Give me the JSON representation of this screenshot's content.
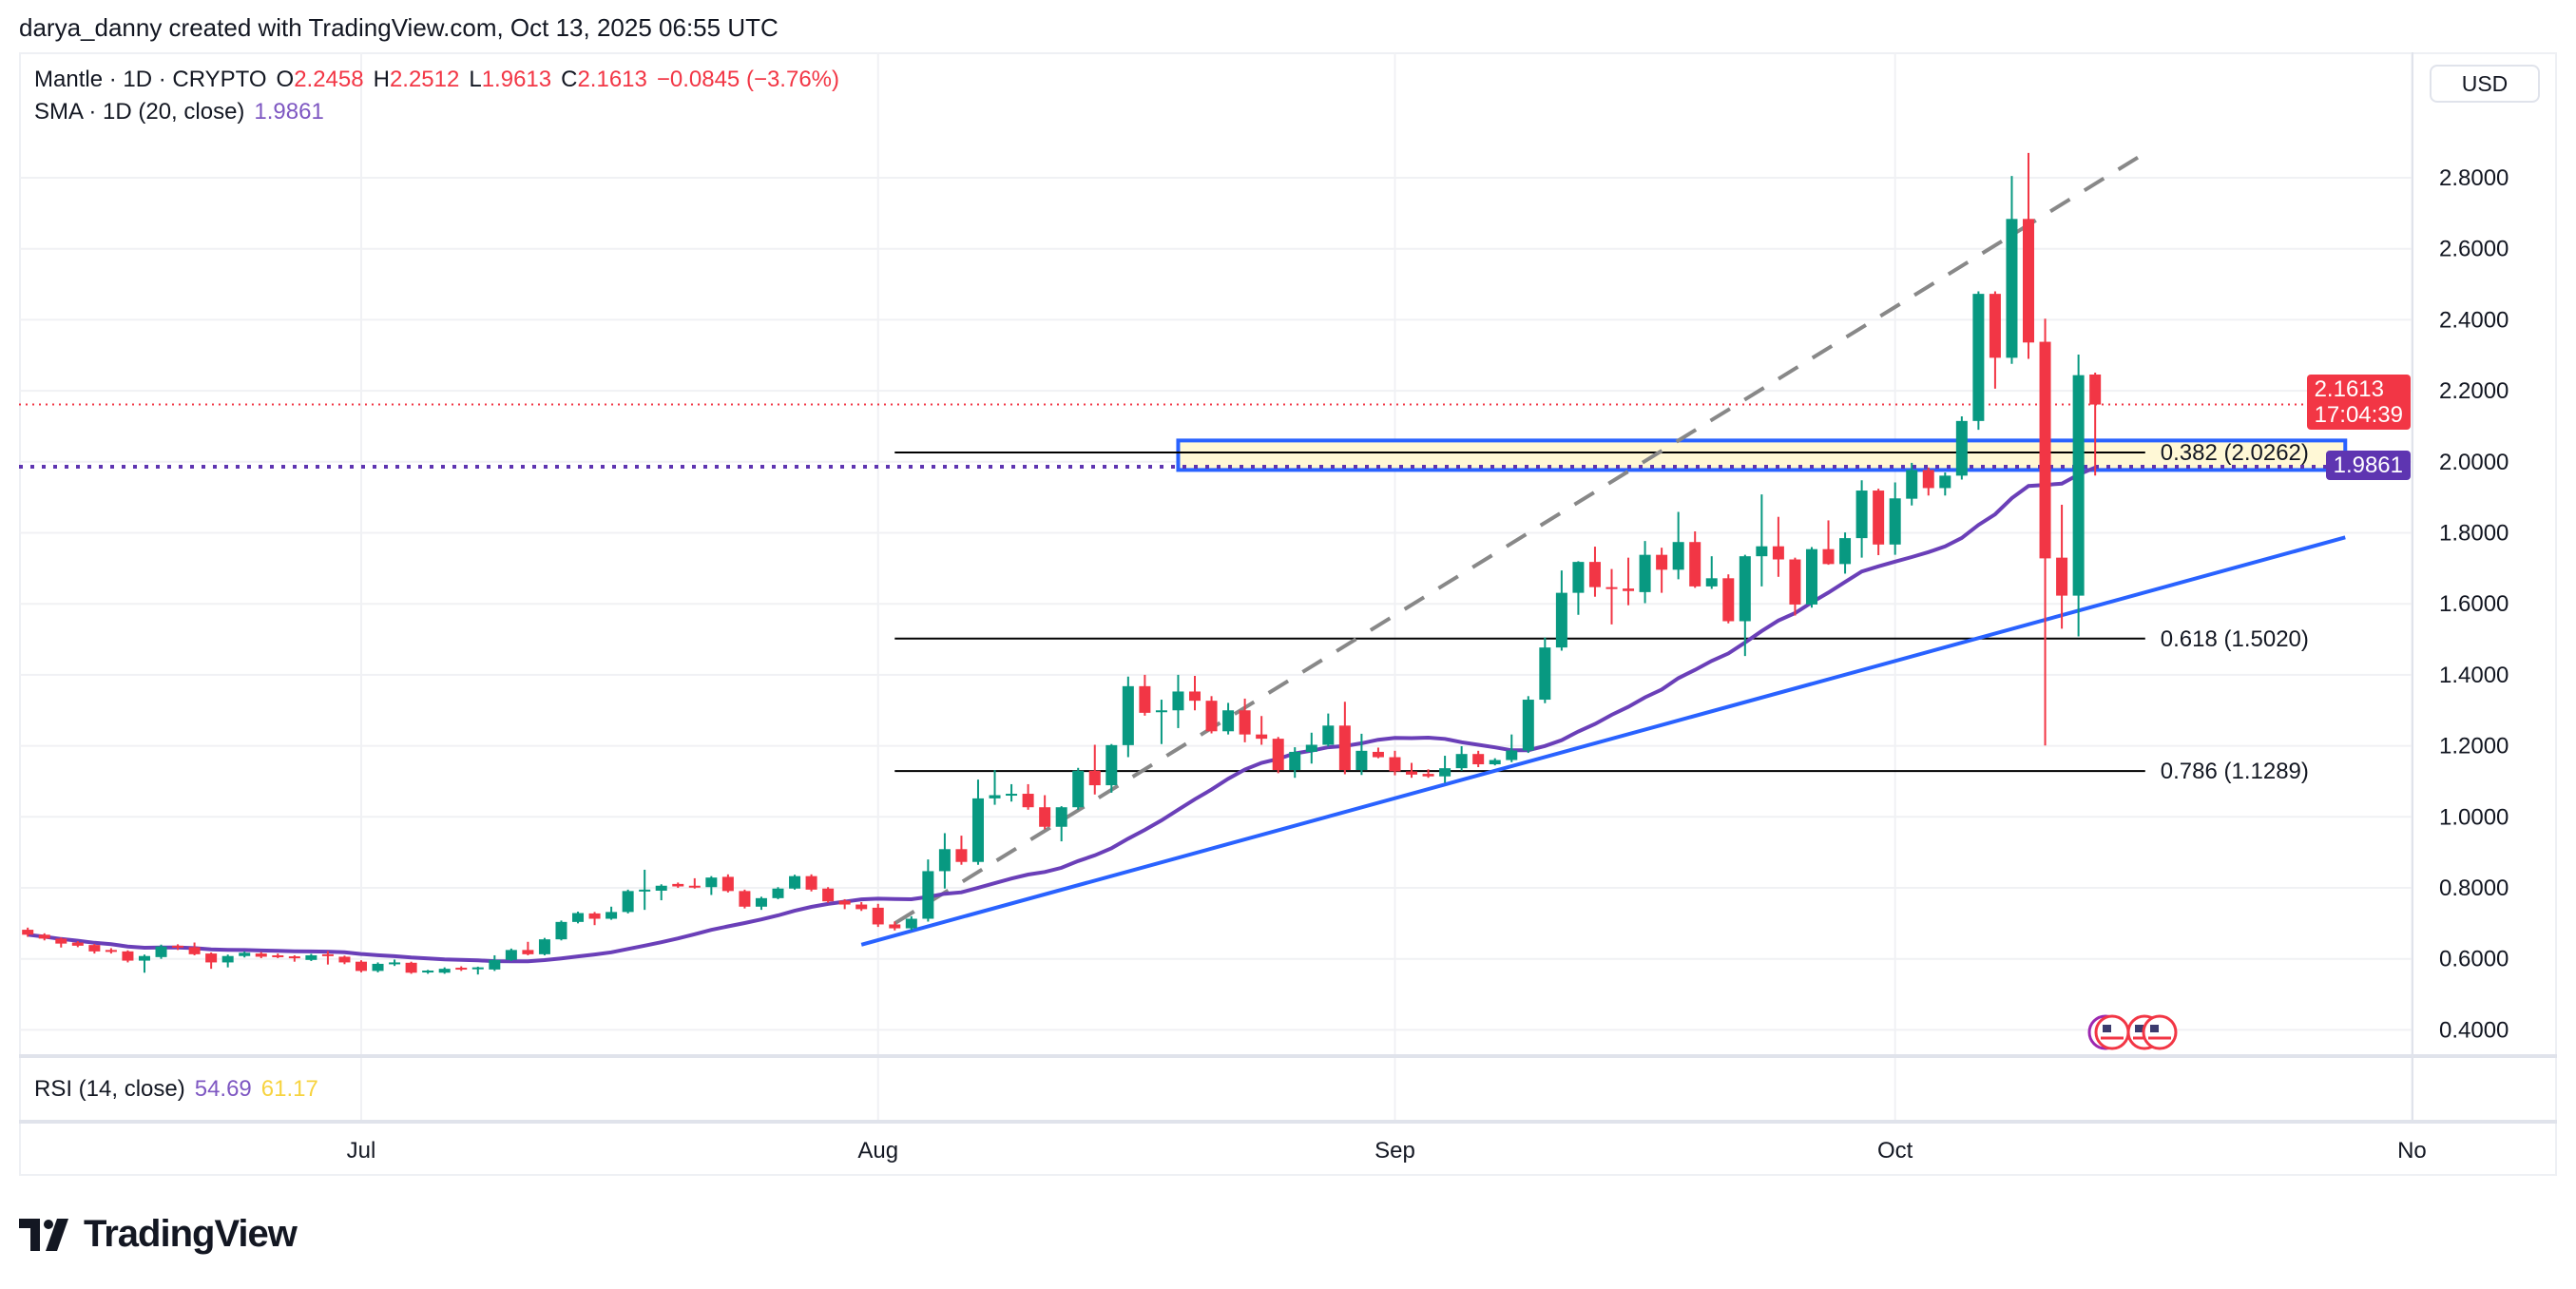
{
  "attribution": "darya_danny created with TradingView.com, Oct 13, 2025 06:55 UTC",
  "legend": {
    "symbol": "Mantle · 1D · CRYPTO",
    "o_label": "O",
    "o": "2.2458",
    "h_label": "H",
    "h": "2.2512",
    "l_label": "L",
    "l": "1.9613",
    "c_label": "C",
    "c": "2.1613",
    "change": "−0.0845 (−3.76%)",
    "sma_label": "SMA · 1D (20, close)",
    "sma_value": "1.9861",
    "rsi_label": "RSI (14, close)",
    "rsi_value": "54.69",
    "rsi_ma_value": "61.17"
  },
  "currency": "USD",
  "last_price_label": "2.1613",
  "countdown": "17:04:39",
  "sma_price_label": "1.9861",
  "brand": "TradingView",
  "colors": {
    "up": "#089981",
    "down": "#F23645",
    "sma": "#6a3fb8",
    "trendline": "#2962FF",
    "fib": "#000000",
    "zone_fill": "#FFF8D6",
    "dashed": "#888888",
    "grid": "#f0f1f4"
  },
  "icons": {
    "events": "us-flag-icon",
    "logo": "tradingview-logo-icon"
  },
  "chart_data": {
    "type": "candlestick",
    "yticks": [
      "0.4000",
      "0.6000",
      "0.8000",
      "1.0000",
      "1.2000",
      "1.4000",
      "1.6000",
      "1.8000",
      "2.0000",
      "2.2000",
      "2.4000",
      "2.6000",
      "2.8000"
    ],
    "ylim": [
      0.4,
      2.8
    ],
    "xticks": [
      {
        "date": "2025-07-01",
        "label": "Jul"
      },
      {
        "date": "2025-08-01",
        "label": "Aug"
      },
      {
        "date": "2025-09-01",
        "label": "Sep"
      },
      {
        "date": "2025-10-01",
        "label": "Oct"
      },
      {
        "date": "2025-11-01",
        "label": "No"
      }
    ],
    "grid": true,
    "sma_period": 20,
    "current_price": 2.1613,
    "sma_current": 1.9861,
    "candles_ohlc": [
      [
        "2025-06-11",
        0.682,
        0.688,
        0.662,
        0.668
      ],
      [
        "2025-06-12",
        0.668,
        0.672,
        0.652,
        0.657
      ],
      [
        "2025-06-13",
        0.657,
        0.66,
        0.632,
        0.643
      ],
      [
        "2025-06-14",
        0.646,
        0.65,
        0.633,
        0.637
      ],
      [
        "2025-06-15",
        0.639,
        0.642,
        0.615,
        0.621
      ],
      [
        "2025-06-16",
        0.625,
        0.63,
        0.615,
        0.622
      ],
      [
        "2025-06-17",
        0.621,
        0.624,
        0.59,
        0.595
      ],
      [
        "2025-06-18",
        0.595,
        0.612,
        0.561,
        0.608
      ],
      [
        "2025-06-19",
        0.605,
        0.64,
        0.6,
        0.635
      ],
      [
        "2025-06-20",
        0.637,
        0.641,
        0.625,
        0.633
      ],
      [
        "2025-06-21",
        0.633,
        0.646,
        0.61,
        0.613
      ],
      [
        "2025-06-22",
        0.615,
        0.618,
        0.572,
        0.59
      ],
      [
        "2025-06-23",
        0.59,
        0.612,
        0.576,
        0.608
      ],
      [
        "2025-06-24",
        0.608,
        0.621,
        0.604,
        0.617
      ],
      [
        "2025-06-25",
        0.615,
        0.619,
        0.602,
        0.606
      ],
      [
        "2025-06-26",
        0.61,
        0.615,
        0.602,
        0.608
      ],
      [
        "2025-06-27",
        0.607,
        0.61,
        0.592,
        0.604
      ],
      [
        "2025-06-28",
        0.597,
        0.614,
        0.594,
        0.61
      ],
      [
        "2025-06-29",
        0.613,
        0.622,
        0.584,
        0.61
      ],
      [
        "2025-06-30",
        0.606,
        0.609,
        0.585,
        0.59
      ],
      [
        "2025-07-01",
        0.592,
        0.596,
        0.562,
        0.566
      ],
      [
        "2025-07-02",
        0.566,
        0.59,
        0.562,
        0.586
      ],
      [
        "2025-07-03",
        0.589,
        0.598,
        0.58,
        0.59
      ],
      [
        "2025-07-04",
        0.589,
        0.592,
        0.558,
        0.561
      ],
      [
        "2025-07-05",
        0.563,
        0.569,
        0.558,
        0.567
      ],
      [
        "2025-07-06",
        0.561,
        0.576,
        0.558,
        0.572
      ],
      [
        "2025-07-07",
        0.575,
        0.579,
        0.566,
        0.57
      ],
      [
        "2025-07-08",
        0.574,
        0.578,
        0.556,
        0.576
      ],
      [
        "2025-07-09",
        0.57,
        0.61,
        0.566,
        0.597
      ],
      [
        "2025-07-10",
        0.597,
        0.629,
        0.594,
        0.625
      ],
      [
        "2025-07-11",
        0.625,
        0.648,
        0.61,
        0.613
      ],
      [
        "2025-07-12",
        0.613,
        0.659,
        0.61,
        0.655
      ],
      [
        "2025-07-13",
        0.655,
        0.708,
        0.652,
        0.704
      ],
      [
        "2025-07-14",
        0.704,
        0.733,
        0.7,
        0.729
      ],
      [
        "2025-07-15",
        0.728,
        0.732,
        0.695,
        0.713
      ],
      [
        "2025-07-16",
        0.713,
        0.747,
        0.71,
        0.732
      ],
      [
        "2025-07-17",
        0.732,
        0.795,
        0.728,
        0.791
      ],
      [
        "2025-07-18",
        0.791,
        0.851,
        0.738,
        0.795
      ],
      [
        "2025-07-19",
        0.792,
        0.81,
        0.765,
        0.806
      ],
      [
        "2025-07-20",
        0.811,
        0.815,
        0.8,
        0.804
      ],
      [
        "2025-07-21",
        0.806,
        0.827,
        0.798,
        0.802
      ],
      [
        "2025-07-22",
        0.802,
        0.833,
        0.78,
        0.829
      ],
      [
        "2025-07-23",
        0.831,
        0.838,
        0.787,
        0.791
      ],
      [
        "2025-07-24",
        0.791,
        0.795,
        0.742,
        0.747
      ],
      [
        "2025-07-25",
        0.747,
        0.775,
        0.738,
        0.771
      ],
      [
        "2025-07-26",
        0.771,
        0.802,
        0.768,
        0.798
      ],
      [
        "2025-07-27",
        0.798,
        0.837,
        0.795,
        0.833
      ],
      [
        "2025-07-28",
        0.833,
        0.838,
        0.79,
        0.795
      ],
      [
        "2025-07-29",
        0.798,
        0.802,
        0.758,
        0.762
      ],
      [
        "2025-07-30",
        0.764,
        0.768,
        0.74,
        0.753
      ],
      [
        "2025-07-31",
        0.753,
        0.76,
        0.735,
        0.74
      ],
      [
        "2025-08-01",
        0.744,
        0.755,
        0.69,
        0.697
      ],
      [
        "2025-08-02",
        0.697,
        0.705,
        0.68,
        0.686
      ],
      [
        "2025-08-03",
        0.686,
        0.72,
        0.68,
        0.713
      ],
      [
        "2025-08-04",
        0.713,
        0.88,
        0.705,
        0.847
      ],
      [
        "2025-08-05",
        0.847,
        0.954,
        0.798,
        0.909
      ],
      [
        "2025-08-06",
        0.909,
        0.947,
        0.865,
        0.873
      ],
      [
        "2025-08-07",
        0.873,
        1.105,
        0.865,
        1.052
      ],
      [
        "2025-08-08",
        1.052,
        1.132,
        1.034,
        1.061
      ],
      [
        "2025-08-09",
        1.061,
        1.092,
        1.043,
        1.065
      ],
      [
        "2025-08-10",
        1.065,
        1.092,
        1.02,
        1.027
      ],
      [
        "2025-08-11",
        1.027,
        1.061,
        0.965,
        0.972
      ],
      [
        "2025-08-12",
        0.972,
        1.03,
        0.931,
        1.027
      ],
      [
        "2025-08-13",
        1.027,
        1.138,
        1.02,
        1.13
      ],
      [
        "2025-08-14",
        1.13,
        1.203,
        1.063,
        1.089
      ],
      [
        "2025-08-15",
        1.089,
        1.205,
        1.068,
        1.202
      ],
      [
        "2025-08-16",
        1.202,
        1.395,
        1.168,
        1.368
      ],
      [
        "2025-08-17",
        1.368,
        1.4,
        1.285,
        1.293
      ],
      [
        "2025-08-18",
        1.296,
        1.33,
        1.205,
        1.3
      ],
      [
        "2025-08-19",
        1.3,
        1.4,
        1.25,
        1.353
      ],
      [
        "2025-08-20",
        1.353,
        1.397,
        1.3,
        1.327
      ],
      [
        "2025-08-21",
        1.327,
        1.34,
        1.235,
        1.241
      ],
      [
        "2025-08-22",
        1.241,
        1.321,
        1.232,
        1.3
      ],
      [
        "2025-08-23",
        1.3,
        1.333,
        1.21,
        1.232
      ],
      [
        "2025-08-24",
        1.232,
        1.284,
        1.203,
        1.22
      ],
      [
        "2025-08-25",
        1.22,
        1.225,
        1.123,
        1.132
      ],
      [
        "2025-08-26",
        1.132,
        1.196,
        1.11,
        1.183
      ],
      [
        "2025-08-27",
        1.183,
        1.237,
        1.15,
        1.203
      ],
      [
        "2025-08-28",
        1.203,
        1.291,
        1.198,
        1.257
      ],
      [
        "2025-08-29",
        1.257,
        1.324,
        1.12,
        1.132
      ],
      [
        "2025-08-30",
        1.132,
        1.234,
        1.118,
        1.186
      ],
      [
        "2025-08-31",
        1.183,
        1.195,
        1.165,
        1.168
      ],
      [
        "2025-09-01",
        1.168,
        1.186,
        1.117,
        1.128
      ],
      [
        "2025-09-02",
        1.128,
        1.152,
        1.11,
        1.119
      ],
      [
        "2025-09-03",
        1.121,
        1.134,
        1.11,
        1.114
      ],
      [
        "2025-09-04",
        1.114,
        1.172,
        1.096,
        1.137
      ],
      [
        "2025-09-05",
        1.137,
        1.199,
        1.13,
        1.177
      ],
      [
        "2025-09-06",
        1.177,
        1.186,
        1.14,
        1.148
      ],
      [
        "2025-09-07",
        1.148,
        1.165,
        1.145,
        1.16
      ],
      [
        "2025-09-08",
        1.16,
        1.232,
        1.154,
        1.187
      ],
      [
        "2025-09-09",
        1.187,
        1.34,
        1.18,
        1.33
      ],
      [
        "2025-09-10",
        1.33,
        1.505,
        1.32,
        1.477
      ],
      [
        "2025-09-11",
        1.477,
        1.694,
        1.468,
        1.631
      ],
      [
        "2025-09-12",
        1.631,
        1.72,
        1.569,
        1.718
      ],
      [
        "2025-09-13",
        1.718,
        1.761,
        1.62,
        1.647
      ],
      [
        "2025-09-14",
        1.647,
        1.698,
        1.542,
        1.643
      ],
      [
        "2025-09-15",
        1.643,
        1.73,
        1.596,
        1.636
      ],
      [
        "2025-09-16",
        1.633,
        1.777,
        1.602,
        1.738
      ],
      [
        "2025-09-17",
        1.738,
        1.758,
        1.631,
        1.696
      ],
      [
        "2025-09-18",
        1.696,
        1.859,
        1.669,
        1.774
      ],
      [
        "2025-09-19",
        1.774,
        1.804,
        1.645,
        1.649
      ],
      [
        "2025-09-20",
        1.649,
        1.734,
        1.642,
        1.672
      ],
      [
        "2025-09-21",
        1.672,
        1.683,
        1.545,
        1.551
      ],
      [
        "2025-09-22",
        1.551,
        1.738,
        1.453,
        1.734
      ],
      [
        "2025-09-23",
        1.734,
        1.908,
        1.649,
        1.762
      ],
      [
        "2025-09-24",
        1.762,
        1.845,
        1.676,
        1.725
      ],
      [
        "2025-09-25",
        1.725,
        1.73,
        1.567,
        1.598
      ],
      [
        "2025-09-26",
        1.598,
        1.76,
        1.589,
        1.754
      ],
      [
        "2025-09-27",
        1.754,
        1.835,
        1.71,
        1.712
      ],
      [
        "2025-09-28",
        1.712,
        1.801,
        1.685,
        1.785
      ],
      [
        "2025-09-29",
        1.785,
        1.948,
        1.73,
        1.919
      ],
      [
        "2025-09-30",
        1.919,
        1.924,
        1.737,
        1.767
      ],
      [
        "2025-10-01",
        1.767,
        1.942,
        1.738,
        1.897
      ],
      [
        "2025-10-02",
        1.896,
        1.997,
        1.877,
        1.977
      ],
      [
        "2025-10-03",
        1.977,
        1.984,
        1.905,
        1.926
      ],
      [
        "2025-10-04",
        1.926,
        1.97,
        1.905,
        1.961
      ],
      [
        "2025-10-05",
        1.961,
        2.128,
        1.95,
        2.115
      ],
      [
        "2025-10-06",
        2.115,
        2.48,
        2.09,
        2.473
      ],
      [
        "2025-10-07",
        2.473,
        2.48,
        2.206,
        2.293
      ],
      [
        "2025-10-08",
        2.293,
        2.805,
        2.276,
        2.684
      ],
      [
        "2025-10-09",
        2.684,
        2.87,
        2.29,
        2.336
      ],
      [
        "2025-10-10",
        2.338,
        2.403,
        1.201,
        1.728
      ],
      [
        "2025-10-11",
        1.73,
        1.879,
        1.53,
        1.623
      ],
      [
        "2025-10-12",
        1.623,
        2.302,
        1.508,
        2.244
      ],
      [
        "2025-10-13",
        2.2458,
        2.2512,
        1.9613,
        2.1613
      ]
    ],
    "trendline": {
      "from": [
        "2025-07-31",
        0.64
      ],
      "to": [
        "2025-10-28",
        1.787
      ]
    },
    "dashed_line": {
      "from": [
        "2025-08-02",
        0.7
      ],
      "to": [
        "2025-10-16",
        2.87
      ]
    },
    "fib_levels": [
      {
        "label": "0.382 (2.0262)",
        "price": 2.0262
      },
      {
        "label": "0.618 (1.5020)",
        "price": 1.502
      },
      {
        "label": "0.786 (1.1289)",
        "price": 1.1289
      }
    ],
    "fib_range": [
      "2025-08-02",
      "2025-10-16"
    ],
    "zone": {
      "from": "2025-08-19",
      "to": "2025-10-28",
      "top": 2.06,
      "bottom": 1.977
    }
  }
}
